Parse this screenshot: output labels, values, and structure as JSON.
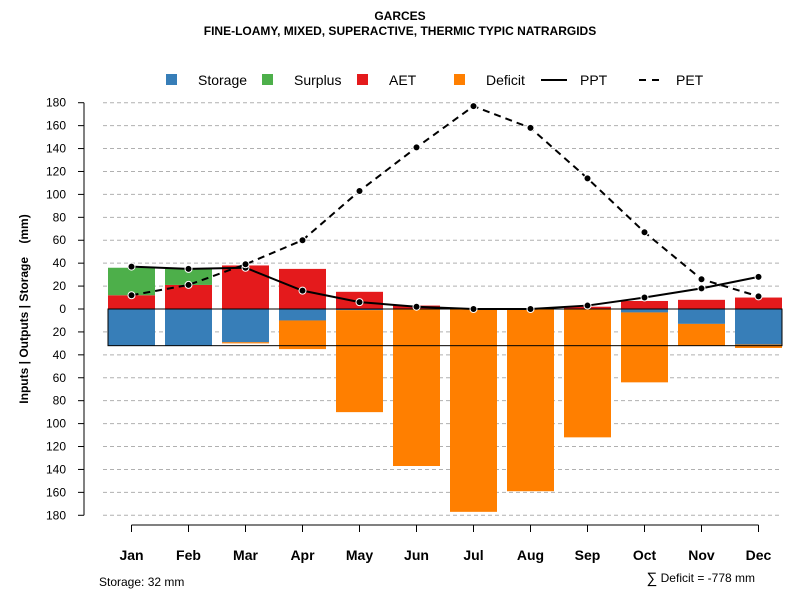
{
  "title": "GARCES",
  "subtitle": "FINE-LOAMY, MIXED, SUPERACTIVE, THERMIC TYPIC NATRARGIDS",
  "colors": {
    "storage": "#377eb8",
    "surplus": "#4daf4a",
    "aet": "#e41a1c",
    "deficit": "#ff7f00",
    "line": "#000000",
    "grid": "#b0b0b0"
  },
  "footer": {
    "storage_text": "Storage: 32 mm",
    "deficit_symbol": "∑",
    "deficit_text": "Deficit = -778 mm"
  },
  "chart_data": {
    "type": "bar",
    "title": "GARCES",
    "subtitle": "FINE-LOAMY, MIXED, SUPERACTIVE, THERMIC TYPIC NATRARGIDS",
    "xlabel": "",
    "ylabel": "Inputs | Outputs | Storage    (mm)",
    "ylim": [
      -180,
      180
    ],
    "yticks": [
      180,
      160,
      140,
      120,
      100,
      80,
      60,
      40,
      20,
      0,
      -20,
      -40,
      -60,
      -80,
      -100,
      -120,
      -140,
      -160,
      -180
    ],
    "ytick_labels": [
      "180",
      "160",
      "140",
      "120",
      "100",
      "80",
      "60",
      "40",
      "20",
      "0",
      "20",
      "40",
      "60",
      "80",
      "100",
      "120",
      "140",
      "160",
      "180"
    ],
    "grid": true,
    "legend_position": "top",
    "legend": [
      {
        "name": "Storage",
        "kind": "box",
        "color": "#377eb8"
      },
      {
        "name": "Surplus",
        "kind": "box",
        "color": "#4daf4a"
      },
      {
        "name": "AET",
        "kind": "box",
        "color": "#e41a1c"
      },
      {
        "name": "Deficit",
        "kind": "box",
        "color": "#ff7f00"
      },
      {
        "name": "PPT",
        "kind": "solid",
        "color": "#000000"
      },
      {
        "name": "PET",
        "kind": "dashed",
        "color": "#000000"
      }
    ],
    "categories": [
      "Jan",
      "Feb",
      "Mar",
      "Apr",
      "May",
      "Jun",
      "Jul",
      "Aug",
      "Sep",
      "Oct",
      "Nov",
      "Dec"
    ],
    "storage_capacity": 32,
    "series": [
      {
        "name": "AET",
        "values": [
          12,
          21,
          38,
          35,
          15,
          3,
          0,
          0,
          2,
          7,
          8,
          10
        ]
      },
      {
        "name": "Surplus",
        "values": [
          24,
          14,
          0,
          0,
          0,
          0,
          0,
          0,
          0,
          0,
          0,
          0
        ]
      },
      {
        "name": "Storage",
        "values": [
          -32,
          -32,
          -29,
          -10,
          -1,
          0,
          0,
          0,
          0,
          -3,
          -13,
          -31
        ]
      },
      {
        "name": "Deficit",
        "values": [
          0,
          0,
          -1,
          -25,
          -89,
          -137,
          -177,
          -159,
          -112,
          -61,
          -19,
          -3
        ]
      },
      {
        "name": "PPT",
        "values": [
          37,
          35,
          36,
          16,
          6,
          2,
          0,
          0,
          3,
          10,
          18,
          28
        ]
      },
      {
        "name": "PET",
        "values": [
          12,
          21,
          39,
          60,
          103,
          141,
          177,
          158,
          114,
          67,
          26,
          11
        ]
      }
    ]
  }
}
